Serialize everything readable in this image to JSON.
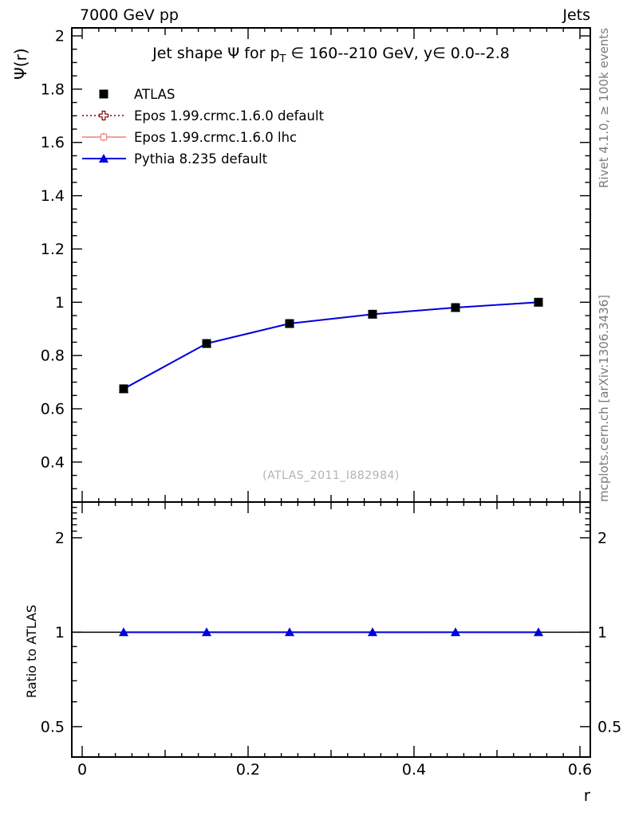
{
  "header": {
    "left": "7000 GeV pp",
    "right": "Jets"
  },
  "side_notes": {
    "top_right": "Rivet 4.1.0, ≥ 100k events",
    "bottom_right": "mcplots.cern.ch [arXiv:1306.3436]"
  },
  "watermark": "(ATLAS_2011_I882984)",
  "chart_data": [
    {
      "type": "line",
      "panel": "main",
      "title_parts": {
        "prefix": "Jet shape Ψ for p",
        "sub": "T",
        "suffix": " ∈ 160--210 GeV, y∈ 0.0--2.8"
      },
      "ylabel": "Ψ(r)",
      "xlabel": "r",
      "xlim": [
        -0.0125,
        0.6125
      ],
      "ylim": [
        0.25,
        2.03
      ],
      "x_ticks": [
        0,
        0.2,
        0.4,
        0.6
      ],
      "x_tick_labels": [
        "0",
        "0.2",
        "0.4",
        "0.6"
      ],
      "y_ticks": [
        0.4,
        0.6,
        0.8,
        1,
        1.2,
        1.4,
        1.6,
        1.8,
        2
      ],
      "y_tick_labels": [
        "0.4",
        "0.6",
        "0.8",
        "1",
        "1.2",
        "1.4",
        "1.6",
        "1.8",
        "2"
      ],
      "grid": false,
      "legend_position": "top-left",
      "x": [
        0.05,
        0.15,
        0.25,
        0.35,
        0.45,
        0.55
      ],
      "series": [
        {
          "name": "ATLAS",
          "values": [
            0.675,
            0.845,
            0.92,
            0.955,
            0.98,
            1.0
          ],
          "color": "#000000",
          "marker": "filled-square",
          "line": "none"
        },
        {
          "name": "Epos 1.99.crmc.1.6.0 default",
          "values": [
            0.675,
            0.845,
            0.92,
            0.955,
            0.98,
            1.0
          ],
          "color": "#7d0000",
          "marker": "open-cross",
          "line": "dotted"
        },
        {
          "name": "Epos 1.99.crmc.1.6.0 lhc",
          "values": [
            0.675,
            0.845,
            0.92,
            0.955,
            0.98,
            1.0
          ],
          "color": "#ee8181",
          "marker": "open-square-cross",
          "line": "solid"
        },
        {
          "name": "Pythia 8.235 default",
          "values": [
            0.675,
            0.845,
            0.92,
            0.955,
            0.98,
            1.0
          ],
          "color": "#0000dd",
          "marker": "filled-triangle",
          "line": "solid"
        }
      ]
    },
    {
      "type": "line",
      "panel": "ratio",
      "ylabel": "Ratio to ATLAS",
      "yscale": "log",
      "ylim": [
        0.4,
        2.6
      ],
      "y_ticks": [
        0.5,
        1,
        2
      ],
      "y_tick_labels": [
        "0.5",
        "1",
        "2"
      ],
      "reference_line": 1,
      "x": [
        0.05,
        0.15,
        0.25,
        0.35,
        0.45,
        0.55
      ],
      "series": [
        {
          "name": "Epos 1.99.crmc.1.6.0 default",
          "values": [
            1,
            1,
            1,
            1,
            1,
            1
          ],
          "color": "#7d0000",
          "marker": "none",
          "line": "dotted"
        },
        {
          "name": "Epos 1.99.crmc.1.6.0 lhc",
          "values": [
            1,
            1,
            1,
            1,
            1,
            1
          ],
          "color": "#ee8181",
          "marker": "none",
          "line": "solid"
        },
        {
          "name": "Pythia 8.235 default",
          "values": [
            1,
            1,
            1,
            1,
            1,
            1
          ],
          "color": "#0000dd",
          "marker": "filled-triangle",
          "line": "solid"
        }
      ]
    }
  ]
}
